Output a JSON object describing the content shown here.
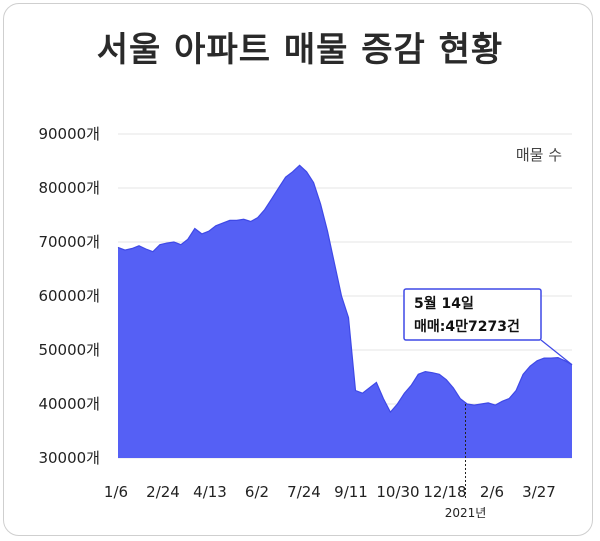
{
  "title": "서울 아파트 매물 증감 현황",
  "chart_data": {
    "type": "area",
    "title": "서울 아파트 매물 증감 현황",
    "series_name": "매물 수",
    "color": "#5560f5",
    "ylim": [
      30000,
      90000
    ],
    "y_ticks": [
      {
        "value": 90000,
        "label": "90000개"
      },
      {
        "value": 80000,
        "label": "80000개"
      },
      {
        "value": 70000,
        "label": "70000개"
      },
      {
        "value": 60000,
        "label": "60000개"
      },
      {
        "value": 50000,
        "label": "50000개"
      },
      {
        "value": 40000,
        "label": "40000개"
      },
      {
        "value": 30000,
        "label": "30000개"
      }
    ],
    "x_ticks": [
      "1/6",
      "2/24",
      "4/13",
      "6/2",
      "7/24",
      "9/11",
      "10/30",
      "12/18",
      "2/6",
      "3/27"
    ],
    "year_marker": {
      "label": "2021년",
      "at_index": 7.5
    },
    "grid": true,
    "values": [
      69000,
      68500,
      68800,
      69300,
      68700,
      68200,
      69500,
      69800,
      70000,
      69500,
      70500,
      72500,
      71500,
      72000,
      73000,
      73500,
      74000,
      74000,
      74200,
      73800,
      74500,
      76000,
      78000,
      80000,
      82000,
      83000,
      84200,
      83000,
      81000,
      77000,
      72000,
      66000,
      60000,
      56000,
      42500,
      42000,
      43000,
      44000,
      41000,
      38500,
      40000,
      42000,
      43500,
      45500,
      46000,
      45800,
      45500,
      44500,
      43000,
      41000,
      40000,
      39800,
      40000,
      40200,
      39800,
      40500,
      41000,
      42500,
      45500,
      47000,
      48000,
      48500,
      48500,
      48600,
      48000,
      47273
    ],
    "annotation": {
      "line1": "5월 14일",
      "line2": "매매:4만7273건",
      "value": 47273
    }
  }
}
